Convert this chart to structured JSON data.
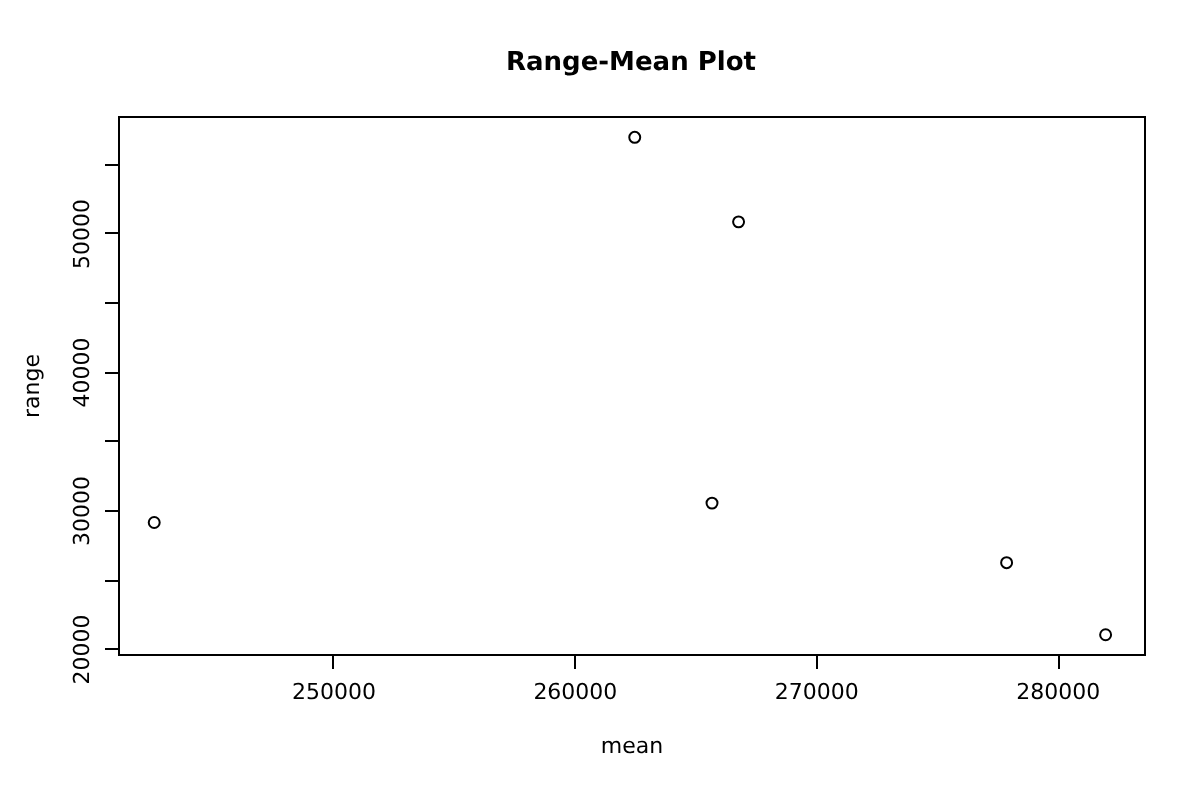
{
  "chart_data": {
    "type": "scatter",
    "title": "Range-Mean Plot",
    "xlabel": "mean",
    "ylabel": "range",
    "x": [
      242600,
      262500,
      265700,
      266800,
      277900,
      282000
    ],
    "values": [
      29100,
      56900,
      30500,
      50800,
      26200,
      21000
    ],
    "color": "#000000",
    "marker": "circle",
    "grid": false,
    "xlim": [
      241100,
      283590
    ],
    "ylim": [
      19610,
      58440
    ],
    "xticks": [
      250000,
      260000,
      270000,
      280000
    ],
    "yticks": [
      20000,
      {
        "value": 25000,
        "label": null
      },
      30000,
      {
        "value": 35000,
        "label": null
      },
      40000,
      {
        "value": 45000,
        "label": null
      },
      50000,
      {
        "value": 55000,
        "label": null
      }
    ]
  }
}
